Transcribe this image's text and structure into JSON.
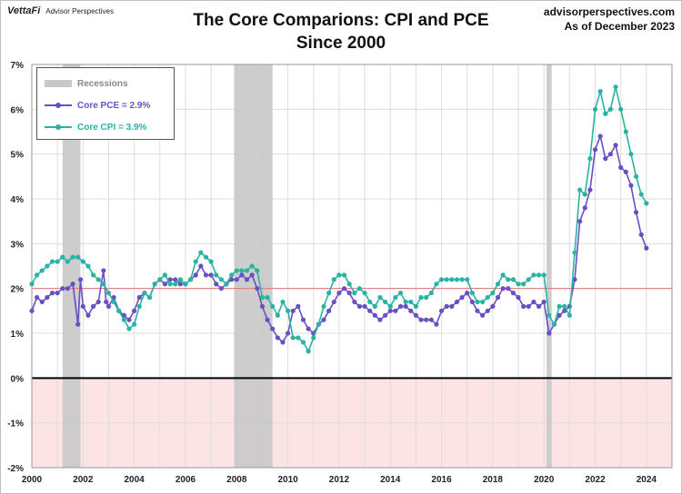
{
  "header": {
    "brand": "VettaFi",
    "brand_sub": "Advisor Perspectives",
    "title_line1": "The Core Comparions: CPI and PCE",
    "title_line2": "Since 2000",
    "source_line1": "advisorperspectives.com",
    "source_line2": "As of December 2023"
  },
  "legend": {
    "recessions": "Recessions",
    "pce": "Core PCE = 2.9%",
    "cpi": "Core CPI =  3.9%"
  },
  "colors": {
    "pce": "#6a4fc4",
    "cpi": "#2ab3a3",
    "recession": "#c8c8c8",
    "target_line": "#e8726a",
    "negative_zone": "#fde4e4"
  },
  "chart_data": {
    "type": "line",
    "title": "The Core Comparions: CPI and PCE Since 2000",
    "xlim": [
      2000,
      2025
    ],
    "ylim": [
      -2,
      7
    ],
    "x_ticks": [
      "2000",
      "2002",
      "2004",
      "2006",
      "2008",
      "2010",
      "2012",
      "2014",
      "2016",
      "2018",
      "2020",
      "2022",
      "2024"
    ],
    "y_ticks": [
      "-2%",
      "-1%",
      "0%",
      "1%",
      "2%",
      "3%",
      "4%",
      "5%",
      "6%",
      "7%"
    ],
    "reference_line": 2,
    "recessions": [
      [
        2001.2,
        2001.9
      ],
      [
        2007.9,
        2009.4
      ],
      [
        2020.1,
        2020.3
      ]
    ],
    "series": [
      {
        "name": "Core PCE",
        "points": [
          [
            2000.0,
            1.5
          ],
          [
            2000.2,
            1.8
          ],
          [
            2000.4,
            1.7
          ],
          [
            2000.6,
            1.8
          ],
          [
            2000.8,
            1.9
          ],
          [
            2001.0,
            1.9
          ],
          [
            2001.2,
            2.0
          ],
          [
            2001.4,
            2.0
          ],
          [
            2001.6,
            2.1
          ],
          [
            2001.8,
            1.2
          ],
          [
            2001.9,
            2.2
          ],
          [
            2002.0,
            1.6
          ],
          [
            2002.2,
            1.4
          ],
          [
            2002.4,
            1.6
          ],
          [
            2002.6,
            1.7
          ],
          [
            2002.8,
            2.4
          ],
          [
            2002.9,
            1.7
          ],
          [
            2003.0,
            1.6
          ],
          [
            2003.2,
            1.8
          ],
          [
            2003.4,
            1.5
          ],
          [
            2003.6,
            1.4
          ],
          [
            2003.8,
            1.3
          ],
          [
            2004.0,
            1.5
          ],
          [
            2004.2,
            1.8
          ],
          [
            2004.4,
            1.9
          ],
          [
            2004.6,
            1.8
          ],
          [
            2004.8,
            2.1
          ],
          [
            2005.0,
            2.2
          ],
          [
            2005.2,
            2.1
          ],
          [
            2005.4,
            2.2
          ],
          [
            2005.6,
            2.2
          ],
          [
            2005.8,
            2.1
          ],
          [
            2006.0,
            2.1
          ],
          [
            2006.2,
            2.2
          ],
          [
            2006.4,
            2.3
          ],
          [
            2006.6,
            2.5
          ],
          [
            2006.8,
            2.3
          ],
          [
            2007.0,
            2.3
          ],
          [
            2007.2,
            2.1
          ],
          [
            2007.4,
            2.0
          ],
          [
            2007.6,
            2.1
          ],
          [
            2007.8,
            2.2
          ],
          [
            2008.0,
            2.2
          ],
          [
            2008.2,
            2.3
          ],
          [
            2008.4,
            2.2
          ],
          [
            2008.6,
            2.3
          ],
          [
            2008.8,
            2.0
          ],
          [
            2009.0,
            1.6
          ],
          [
            2009.2,
            1.3
          ],
          [
            2009.4,
            1.1
          ],
          [
            2009.6,
            0.9
          ],
          [
            2009.8,
            0.8
          ],
          [
            2010.0,
            1.0
          ],
          [
            2010.2,
            1.5
          ],
          [
            2010.4,
            1.6
          ],
          [
            2010.6,
            1.3
          ],
          [
            2010.8,
            1.1
          ],
          [
            2011.0,
            1.0
          ],
          [
            2011.2,
            1.2
          ],
          [
            2011.4,
            1.3
          ],
          [
            2011.6,
            1.5
          ],
          [
            2011.8,
            1.7
          ],
          [
            2012.0,
            1.9
          ],
          [
            2012.2,
            2.0
          ],
          [
            2012.4,
            1.9
          ],
          [
            2012.6,
            1.7
          ],
          [
            2012.8,
            1.6
          ],
          [
            2013.0,
            1.6
          ],
          [
            2013.2,
            1.5
          ],
          [
            2013.4,
            1.4
          ],
          [
            2013.6,
            1.3
          ],
          [
            2013.8,
            1.4
          ],
          [
            2014.0,
            1.5
          ],
          [
            2014.2,
            1.5
          ],
          [
            2014.4,
            1.6
          ],
          [
            2014.6,
            1.6
          ],
          [
            2014.8,
            1.5
          ],
          [
            2015.0,
            1.4
          ],
          [
            2015.2,
            1.3
          ],
          [
            2015.4,
            1.3
          ],
          [
            2015.6,
            1.3
          ],
          [
            2015.8,
            1.2
          ],
          [
            2016.0,
            1.5
          ],
          [
            2016.2,
            1.6
          ],
          [
            2016.4,
            1.6
          ],
          [
            2016.6,
            1.7
          ],
          [
            2016.8,
            1.8
          ],
          [
            2017.0,
            1.9
          ],
          [
            2017.2,
            1.7
          ],
          [
            2017.4,
            1.5
          ],
          [
            2017.6,
            1.4
          ],
          [
            2017.8,
            1.5
          ],
          [
            2018.0,
            1.6
          ],
          [
            2018.2,
            1.8
          ],
          [
            2018.4,
            2.0
          ],
          [
            2018.6,
            2.0
          ],
          [
            2018.8,
            1.9
          ],
          [
            2019.0,
            1.8
          ],
          [
            2019.2,
            1.6
          ],
          [
            2019.4,
            1.6
          ],
          [
            2019.6,
            1.7
          ],
          [
            2019.8,
            1.6
          ],
          [
            2020.0,
            1.7
          ],
          [
            2020.2,
            1.0
          ],
          [
            2020.4,
            1.2
          ],
          [
            2020.6,
            1.4
          ],
          [
            2020.8,
            1.5
          ],
          [
            2021.0,
            1.6
          ],
          [
            2021.2,
            2.2
          ],
          [
            2021.4,
            3.5
          ],
          [
            2021.6,
            3.8
          ],
          [
            2021.8,
            4.2
          ],
          [
            2022.0,
            5.1
          ],
          [
            2022.2,
            5.4
          ],
          [
            2022.4,
            4.9
          ],
          [
            2022.6,
            5.0
          ],
          [
            2022.8,
            5.2
          ],
          [
            2023.0,
            4.7
          ],
          [
            2023.2,
            4.6
          ],
          [
            2023.4,
            4.3
          ],
          [
            2023.6,
            3.7
          ],
          [
            2023.8,
            3.2
          ],
          [
            2024.0,
            2.9
          ]
        ]
      },
      {
        "name": "Core CPI",
        "points": [
          [
            2000.0,
            2.1
          ],
          [
            2000.2,
            2.3
          ],
          [
            2000.4,
            2.4
          ],
          [
            2000.6,
            2.5
          ],
          [
            2000.8,
            2.6
          ],
          [
            2001.0,
            2.6
          ],
          [
            2001.2,
            2.7
          ],
          [
            2001.4,
            2.6
          ],
          [
            2001.6,
            2.7
          ],
          [
            2001.8,
            2.7
          ],
          [
            2002.0,
            2.6
          ],
          [
            2002.2,
            2.5
          ],
          [
            2002.4,
            2.3
          ],
          [
            2002.6,
            2.2
          ],
          [
            2002.8,
            2.1
          ],
          [
            2003.0,
            1.9
          ],
          [
            2003.2,
            1.7
          ],
          [
            2003.4,
            1.5
          ],
          [
            2003.6,
            1.3
          ],
          [
            2003.8,
            1.1
          ],
          [
            2004.0,
            1.2
          ],
          [
            2004.2,
            1.6
          ],
          [
            2004.4,
            1.9
          ],
          [
            2004.6,
            1.8
          ],
          [
            2004.8,
            2.1
          ],
          [
            2005.0,
            2.2
          ],
          [
            2005.2,
            2.3
          ],
          [
            2005.4,
            2.1
          ],
          [
            2005.6,
            2.1
          ],
          [
            2005.8,
            2.2
          ],
          [
            2006.0,
            2.1
          ],
          [
            2006.2,
            2.2
          ],
          [
            2006.4,
            2.6
          ],
          [
            2006.6,
            2.8
          ],
          [
            2006.8,
            2.7
          ],
          [
            2007.0,
            2.6
          ],
          [
            2007.2,
            2.3
          ],
          [
            2007.4,
            2.2
          ],
          [
            2007.6,
            2.1
          ],
          [
            2007.8,
            2.3
          ],
          [
            2008.0,
            2.4
          ],
          [
            2008.2,
            2.4
          ],
          [
            2008.4,
            2.4
          ],
          [
            2008.6,
            2.5
          ],
          [
            2008.8,
            2.4
          ],
          [
            2009.0,
            1.8
          ],
          [
            2009.2,
            1.8
          ],
          [
            2009.4,
            1.6
          ],
          [
            2009.6,
            1.4
          ],
          [
            2009.8,
            1.7
          ],
          [
            2010.0,
            1.5
          ],
          [
            2010.2,
            0.9
          ],
          [
            2010.4,
            0.9
          ],
          [
            2010.6,
            0.8
          ],
          [
            2010.8,
            0.6
          ],
          [
            2011.0,
            0.9
          ],
          [
            2011.2,
            1.2
          ],
          [
            2011.4,
            1.6
          ],
          [
            2011.6,
            1.9
          ],
          [
            2011.8,
            2.2
          ],
          [
            2012.0,
            2.3
          ],
          [
            2012.2,
            2.3
          ],
          [
            2012.4,
            2.1
          ],
          [
            2012.6,
            1.9
          ],
          [
            2012.8,
            2.0
          ],
          [
            2013.0,
            1.9
          ],
          [
            2013.2,
            1.7
          ],
          [
            2013.4,
            1.6
          ],
          [
            2013.6,
            1.8
          ],
          [
            2013.8,
            1.7
          ],
          [
            2014.0,
            1.6
          ],
          [
            2014.2,
            1.8
          ],
          [
            2014.4,
            1.9
          ],
          [
            2014.6,
            1.7
          ],
          [
            2014.8,
            1.7
          ],
          [
            2015.0,
            1.6
          ],
          [
            2015.2,
            1.8
          ],
          [
            2015.4,
            1.8
          ],
          [
            2015.6,
            1.9
          ],
          [
            2015.8,
            2.1
          ],
          [
            2016.0,
            2.2
          ],
          [
            2016.2,
            2.2
          ],
          [
            2016.4,
            2.2
          ],
          [
            2016.6,
            2.2
          ],
          [
            2016.8,
            2.2
          ],
          [
            2017.0,
            2.2
          ],
          [
            2017.2,
            1.9
          ],
          [
            2017.4,
            1.7
          ],
          [
            2017.6,
            1.7
          ],
          [
            2017.8,
            1.8
          ],
          [
            2018.0,
            1.9
          ],
          [
            2018.2,
            2.1
          ],
          [
            2018.4,
            2.3
          ],
          [
            2018.6,
            2.2
          ],
          [
            2018.8,
            2.2
          ],
          [
            2019.0,
            2.1
          ],
          [
            2019.2,
            2.1
          ],
          [
            2019.4,
            2.2
          ],
          [
            2019.6,
            2.3
          ],
          [
            2019.8,
            2.3
          ],
          [
            2020.0,
            2.3
          ],
          [
            2020.2,
            1.4
          ],
          [
            2020.4,
            1.2
          ],
          [
            2020.6,
            1.6
          ],
          [
            2020.8,
            1.6
          ],
          [
            2021.0,
            1.4
          ],
          [
            2021.2,
            2.8
          ],
          [
            2021.4,
            4.2
          ],
          [
            2021.6,
            4.1
          ],
          [
            2021.8,
            4.9
          ],
          [
            2022.0,
            6.0
          ],
          [
            2022.2,
            6.4
          ],
          [
            2022.4,
            5.9
          ],
          [
            2022.6,
            6.0
          ],
          [
            2022.8,
            6.5
          ],
          [
            2023.0,
            6.0
          ],
          [
            2023.2,
            5.5
          ],
          [
            2023.4,
            5.0
          ],
          [
            2023.6,
            4.5
          ],
          [
            2023.8,
            4.1
          ],
          [
            2024.0,
            3.9
          ]
        ]
      }
    ]
  }
}
